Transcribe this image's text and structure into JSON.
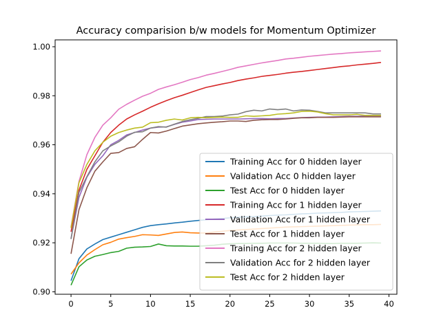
{
  "chart_data": {
    "type": "line",
    "title": "Accuracy comparision b/w models for Momentum Optimizer",
    "xlabel": "",
    "ylabel": "",
    "xlim": [
      -2,
      41
    ],
    "ylim": [
      0.899,
      1.0028
    ],
    "xticks": [
      0,
      5,
      10,
      15,
      20,
      25,
      30,
      35,
      40
    ],
    "yticks": [
      0.9,
      0.92,
      0.94,
      0.96,
      0.98,
      1.0
    ],
    "ytick_labels": [
      "0.90",
      "0.92",
      "0.94",
      "0.96",
      "0.98",
      "1.00"
    ],
    "grid": false,
    "legend_position": "lower right",
    "x": [
      0,
      1,
      2,
      3,
      4,
      5,
      6,
      7,
      8,
      9,
      10,
      11,
      12,
      13,
      14,
      15,
      16,
      17,
      18,
      19,
      20,
      21,
      22,
      23,
      24,
      25,
      26,
      27,
      28,
      29,
      30,
      31,
      32,
      33,
      34,
      35,
      36,
      37,
      38,
      39
    ],
    "series": [
      {
        "name": "Training Acc for 0 hidden layer",
        "color": "#1f77b4",
        "values": [
          0.9045,
          0.9135,
          0.9175,
          0.9195,
          0.9213,
          0.9223,
          0.9233,
          0.9243,
          0.9253,
          0.9263,
          0.927,
          0.9274,
          0.9277,
          0.9281,
          0.9284,
          0.9288,
          0.9291,
          0.9294,
          0.9297,
          0.9299,
          0.9302,
          0.9304,
          0.9306,
          0.9307,
          0.9309,
          0.9311,
          0.9313,
          0.9314,
          0.9316,
          0.9318,
          0.9319,
          0.9321,
          0.9322,
          0.9323,
          0.9324,
          0.9326,
          0.9327,
          0.9328,
          0.9329,
          0.933
        ]
      },
      {
        "name": "Validation Acc 0 hidden layer",
        "color": "#ff7f0e",
        "values": [
          0.9072,
          0.9118,
          0.915,
          0.9172,
          0.9192,
          0.9202,
          0.9215,
          0.9221,
          0.9226,
          0.9233,
          0.9232,
          0.923,
          0.9236,
          0.9242,
          0.9244,
          0.9241,
          0.924,
          0.924,
          0.9244,
          0.9247,
          0.925,
          0.9252,
          0.9254,
          0.9256,
          0.9258,
          0.926,
          0.9262,
          0.9264,
          0.9265,
          0.9266,
          0.9267,
          0.9268,
          0.9269,
          0.927,
          0.9271,
          0.9272,
          0.9273,
          0.9274,
          0.9274,
          0.9275
        ]
      },
      {
        "name": "Test Acc for 0 hidden layer",
        "color": "#2ca02c",
        "values": [
          0.9027,
          0.9102,
          0.913,
          0.9145,
          0.9152,
          0.916,
          0.9165,
          0.9178,
          0.9182,
          0.9183,
          0.9185,
          0.9195,
          0.9188,
          0.9187,
          0.9187,
          0.9186,
          0.9186,
          0.9188,
          0.919,
          0.9194,
          0.9196,
          0.9197,
          0.9197,
          0.9198,
          0.9198,
          0.9199,
          0.9199,
          0.9199,
          0.9199,
          0.9198,
          0.9198,
          0.9198,
          0.9197,
          0.9197,
          0.9198,
          0.9198,
          0.9198,
          0.9199,
          0.92,
          0.9199
        ]
      },
      {
        "name": "Training Acc for 1 hidden layer",
        "color": "#d62728",
        "values": [
          0.9245,
          0.9415,
          0.95,
          0.9555,
          0.961,
          0.965,
          0.968,
          0.9705,
          0.9722,
          0.9737,
          0.9753,
          0.9767,
          0.978,
          0.9792,
          0.9802,
          0.9813,
          0.9824,
          0.9834,
          0.9841,
          0.9848,
          0.9854,
          0.9862,
          0.9868,
          0.9873,
          0.9879,
          0.9883,
          0.9887,
          0.9892,
          0.9896,
          0.9899,
          0.9903,
          0.9907,
          0.9911,
          0.9915,
          0.9919,
          0.9922,
          0.9926,
          0.9929,
          0.9932,
          0.9936
        ]
      },
      {
        "name": "Validation Acc for 1 hidden layer",
        "color": "#9467bd",
        "values": [
          0.9218,
          0.9385,
          0.9468,
          0.952,
          0.9555,
          0.96,
          0.9618,
          0.964,
          0.965,
          0.966,
          0.9668,
          0.9672,
          0.9673,
          0.9683,
          0.9692,
          0.9697,
          0.9703,
          0.9704,
          0.9705,
          0.9705,
          0.9705,
          0.9705,
          0.9706,
          0.9707,
          0.9707,
          0.9706,
          0.9707,
          0.9707,
          0.9709,
          0.9711,
          0.9712,
          0.9713,
          0.9713,
          0.9714,
          0.9715,
          0.9716,
          0.9716,
          0.9717,
          0.9718,
          0.9718
        ]
      },
      {
        "name": "Test Acc for 1 hidden layer",
        "color": "#8c564b",
        "values": [
          0.9155,
          0.9335,
          0.9425,
          0.9492,
          0.953,
          0.9565,
          0.9568,
          0.9585,
          0.9592,
          0.9622,
          0.965,
          0.9648,
          0.9656,
          0.9666,
          0.9676,
          0.9681,
          0.9686,
          0.9689,
          0.9692,
          0.9694,
          0.9697,
          0.9697,
          0.9695,
          0.97,
          0.9702,
          0.9703,
          0.9703,
          0.9705,
          0.9708,
          0.971,
          0.971,
          0.9712,
          0.9712,
          0.9712,
          0.9713,
          0.9714,
          0.9714,
          0.9714,
          0.9714,
          0.9714
        ]
      },
      {
        "name": "Training Acc for 2 hidden layer",
        "color": "#e377c2",
        "values": [
          0.9265,
          0.945,
          0.956,
          0.963,
          0.968,
          0.971,
          0.9745,
          0.9765,
          0.9782,
          0.9798,
          0.981,
          0.9826,
          0.9836,
          0.9845,
          0.9855,
          0.9866,
          0.9874,
          0.9884,
          0.9891,
          0.9899,
          0.9907,
          0.9916,
          0.9922,
          0.9928,
          0.9934,
          0.9939,
          0.9944,
          0.995,
          0.9953,
          0.9957,
          0.9961,
          0.9964,
          0.9967,
          0.997,
          0.9972,
          0.9975,
          0.9977,
          0.9979,
          0.9981,
          0.9983
        ]
      },
      {
        "name": "Validation Acc for 2 hidden layer",
        "color": "#7f7f7f",
        "values": [
          0.9215,
          0.9405,
          0.947,
          0.953,
          0.9575,
          0.9595,
          0.9612,
          0.9635,
          0.9651,
          0.9653,
          0.9668,
          0.9674,
          0.9672,
          0.9684,
          0.9695,
          0.9702,
          0.9708,
          0.9715,
          0.9715,
          0.9717,
          0.9722,
          0.9725,
          0.9735,
          0.9741,
          0.9738,
          0.9746,
          0.9743,
          0.9746,
          0.9738,
          0.9742,
          0.9741,
          0.9736,
          0.973,
          0.973,
          0.973,
          0.973,
          0.973,
          0.973,
          0.9726,
          0.9726
        ]
      },
      {
        "name": "Test Acc for 2 hidden layer",
        "color": "#bcbd22",
        "values": [
          0.926,
          0.9445,
          0.952,
          0.9575,
          0.961,
          0.9635,
          0.965,
          0.966,
          0.9668,
          0.9672,
          0.969,
          0.9692,
          0.97,
          0.9705,
          0.9701,
          0.971,
          0.9712,
          0.971,
          0.9712,
          0.9713,
          0.9712,
          0.9712,
          0.9718,
          0.9716,
          0.9718,
          0.972,
          0.9725,
          0.9727,
          0.973,
          0.9736,
          0.9737,
          0.9734,
          0.9727,
          0.9722,
          0.9722,
          0.9722,
          0.9724,
          0.972,
          0.972,
          0.972
        ]
      }
    ]
  }
}
